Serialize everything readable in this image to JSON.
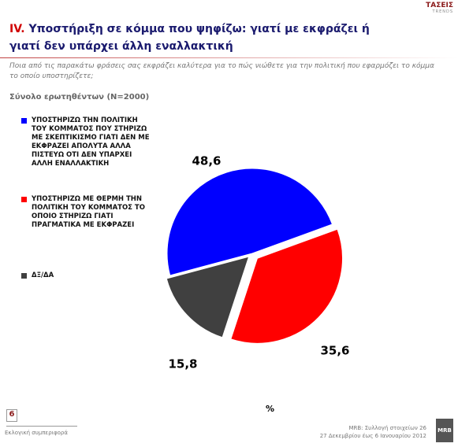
{
  "logo": {
    "name": "ΤΑΣΕΙΣ",
    "sub": "TRENDS"
  },
  "chart_data": {
    "type": "pie",
    "section": "IV.",
    "title": "Υποστήριξη σε κόμμα που ψηφίζω: γιατί με εκφράζει ή γιατί δεν υπάρχει άλλη εναλλακτική",
    "subtitle": "Ποια από τις παρακάτω φράσεις σας εκφράζει καλύτερα για το πώς νιώθετε για την πολιτική που εφαρμόζει το κόμμα το οποίο υποστηρίζετε;",
    "base": "Σύνολο ερωτηθέντων (Ν=2000)",
    "categories": [
      "ΥΠΟΣΤΗΡΙΖΩ ΤΗΝ ΠΟΛΙΤΙΚΗ ΤΟΥ ΚΟΜΜΑΤΟΣ ΠΟΥ ΣΤΗΡΙΖΩ ΜΕ ΣΚΕΠΤΙΚΙΣΜΟ ΓΙΑΤΙ ΔΕΝ ΜΕ ΕΚΦΡΑΖΕΙ ΑΠΟΛΥΤΑ ΑΛΛΑ ΠΙΣΤΕΥΩ ΟΤΙ ΔΕΝ ΥΠΑΡΧΕΙ ΑΛΛΗ ΕΝΑΛΛΑΚΤΙΚΗ",
      "ΥΠΟΣΤΗΡΙΖΩ ΜΕ ΘΕΡΜΗ ΤΗΝ ΠΟΛΙΤΙΚΗ ΤΟΥ ΚΟΜΜΑΤΟΣ ΤΟ ΟΠΟΙΟ ΣΤΗΡΙΖΩ ΓΙΑΤΙ ΠΡΑΓΜΑΤΙΚΑ ΜΕ ΕΚΦΡΑΖΕΙ",
      "ΔΞ/ΔΑ"
    ],
    "values": [
      48.6,
      35.6,
      15.8
    ],
    "value_labels": [
      "48,6",
      "35,6",
      "15,8"
    ],
    "colors": [
      "#0000ff",
      "#ff0000",
      "#404040"
    ],
    "unit": "%"
  },
  "footer": {
    "page": 6,
    "left": "Εκλογική συμπεριφορά",
    "right1": "MRB: Συλλογή στοιχείων 26",
    "right2": "27 Δεκεμβρίου έως 6 Ιανουαρίου 2012",
    "brand": "MRB"
  }
}
